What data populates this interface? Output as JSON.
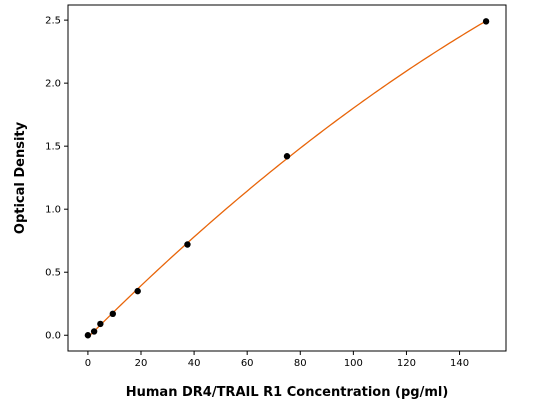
{
  "chart_data": {
    "type": "scatter",
    "title": "",
    "xlabel": "Human DR4/TRAIL R1 Concentration (pg/ml)",
    "ylabel": "Optical Density",
    "xlim": [
      -7.5,
      157.5
    ],
    "ylim": [
      -0.125,
      2.62
    ],
    "x_ticks": [
      0,
      20,
      40,
      60,
      80,
      100,
      120,
      140
    ],
    "y_ticks": [
      0.0,
      0.5,
      1.0,
      1.5,
      2.0,
      2.5
    ],
    "x_tick_labels": [
      "0",
      "20",
      "40",
      "60",
      "80",
      "100",
      "120",
      "140"
    ],
    "y_tick_labels": [
      "0.0",
      "0.5",
      "1.0",
      "1.5",
      "2.0",
      "2.5"
    ],
    "grid": false,
    "legend": "none",
    "series": [
      {
        "x": [
          0,
          2.34,
          4.69,
          9.38,
          18.75,
          37.5,
          75,
          150
        ],
        "y": [
          0.0,
          0.03,
          0.09,
          0.17,
          0.35,
          0.72,
          1.42,
          2.49
        ],
        "marker_color": "#000000",
        "curve_color": "#e8650a"
      }
    ]
  }
}
